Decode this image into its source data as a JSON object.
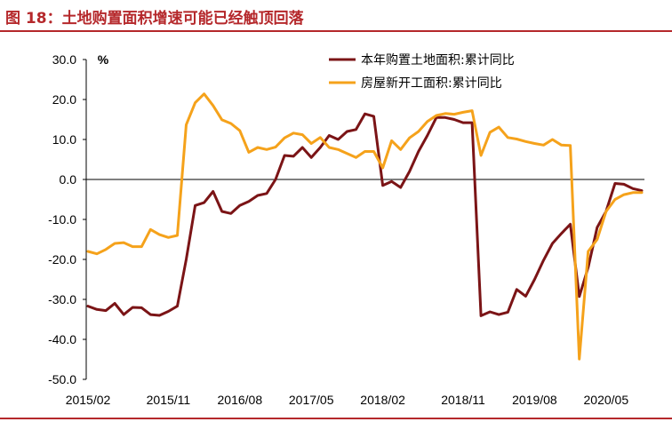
{
  "figure": {
    "title": "图 18：土地购置面积增速可能已经触顶回落"
  },
  "colors": {
    "brand": "#b5282b",
    "series1": "#7b1416",
    "series2": "#f5a21b"
  },
  "chart_data": {
    "type": "line",
    "title": "",
    "xlabel": "",
    "ylabel": "%",
    "ylim": [
      -50,
      30
    ],
    "yticks": [
      "30.0",
      "20.0",
      "10.0",
      "0.0",
      "-10.0",
      "-20.0",
      "-30.0",
      "-40.0",
      "-50.0"
    ],
    "ytick_values": [
      30,
      20,
      10,
      0,
      -10,
      -20,
      -30,
      -40,
      -50
    ],
    "xticks": [
      "2015/02",
      "2015/11",
      "2016/08",
      "2017/05",
      "2018/02",
      "2018/11",
      "2019/08",
      "2020/05"
    ],
    "legend_position": "top-right",
    "grid": false,
    "x": [
      "2015/02",
      "2015/03",
      "2015/04",
      "2015/05",
      "2015/06",
      "2015/07",
      "2015/08",
      "2015/09",
      "2015/10",
      "2015/11",
      "2015/12",
      "2016/02",
      "2016/03",
      "2016/04",
      "2016/05",
      "2016/06",
      "2016/07",
      "2016/08",
      "2016/09",
      "2016/10",
      "2016/11",
      "2016/12",
      "2017/02",
      "2017/03",
      "2017/04",
      "2017/05",
      "2017/06",
      "2017/07",
      "2017/08",
      "2017/09",
      "2017/10",
      "2017/11",
      "2017/12",
      "2018/02",
      "2018/03",
      "2018/04",
      "2018/05",
      "2018/06",
      "2018/07",
      "2018/08",
      "2018/09",
      "2018/10",
      "2018/11",
      "2018/12",
      "2019/02",
      "2019/03",
      "2019/04",
      "2019/05",
      "2019/06",
      "2019/07",
      "2019/08",
      "2019/09",
      "2019/10",
      "2019/11",
      "2019/12",
      "2020/02",
      "2020/03",
      "2020/04",
      "2020/05",
      "2020/06",
      "2020/07",
      "2020/08",
      "2020/09"
    ],
    "series": [
      {
        "name": "本年购置土地面积:累计同比",
        "color": "#7b1416",
        "values": [
          -31.7,
          -32.5,
          -32.8,
          -31.0,
          -33.8,
          -32.0,
          -32.1,
          -33.8,
          -34.0,
          -33.0,
          -31.7,
          -20.0,
          -6.5,
          -5.8,
          -3.0,
          -8.0,
          -8.5,
          -6.5,
          -5.5,
          -4.0,
          -3.5,
          0.0,
          6.0,
          5.8,
          8.0,
          5.5,
          8.0,
          11.0,
          10.0,
          12.0,
          12.5,
          16.4,
          15.8,
          -1.5,
          -0.5,
          -2.0,
          2.0,
          7.0,
          11.0,
          15.5,
          15.5,
          15.0,
          14.2,
          14.2,
          -34.1,
          -33.1,
          -33.8,
          -33.2,
          -27.5,
          -29.2,
          -25.0,
          -20.2,
          -16.0,
          -13.5,
          -11.2,
          -29.3,
          -22.0,
          -12.0,
          -8.0,
          -1.0,
          -1.2,
          -2.3,
          -2.8
        ]
      },
      {
        "name": "房屋新开工面积:累计同比",
        "color": "#f5a21b",
        "values": [
          -18.0,
          -18.6,
          -17.5,
          -16.0,
          -15.8,
          -16.8,
          -16.8,
          -12.5,
          -13.8,
          -14.5,
          -14.0,
          13.7,
          19.2,
          21.4,
          18.5,
          14.9,
          14.0,
          12.2,
          6.8,
          8.0,
          7.5,
          8.1,
          10.4,
          11.6,
          11.2,
          9.0,
          10.5,
          8.0,
          7.5,
          6.5,
          5.5,
          7.0,
          7.0,
          2.9,
          9.7,
          7.5,
          10.4,
          12.0,
          14.5,
          16.0,
          16.5,
          16.3,
          16.8,
          17.2,
          6.0,
          11.8,
          13.1,
          10.5,
          10.1,
          9.5,
          9.0,
          8.6,
          10.0,
          8.6,
          8.5,
          -44.9,
          -18.0,
          -15.0,
          -8.0,
          -5.0,
          -3.8,
          -3.3,
          -3.3
        ]
      }
    ]
  }
}
